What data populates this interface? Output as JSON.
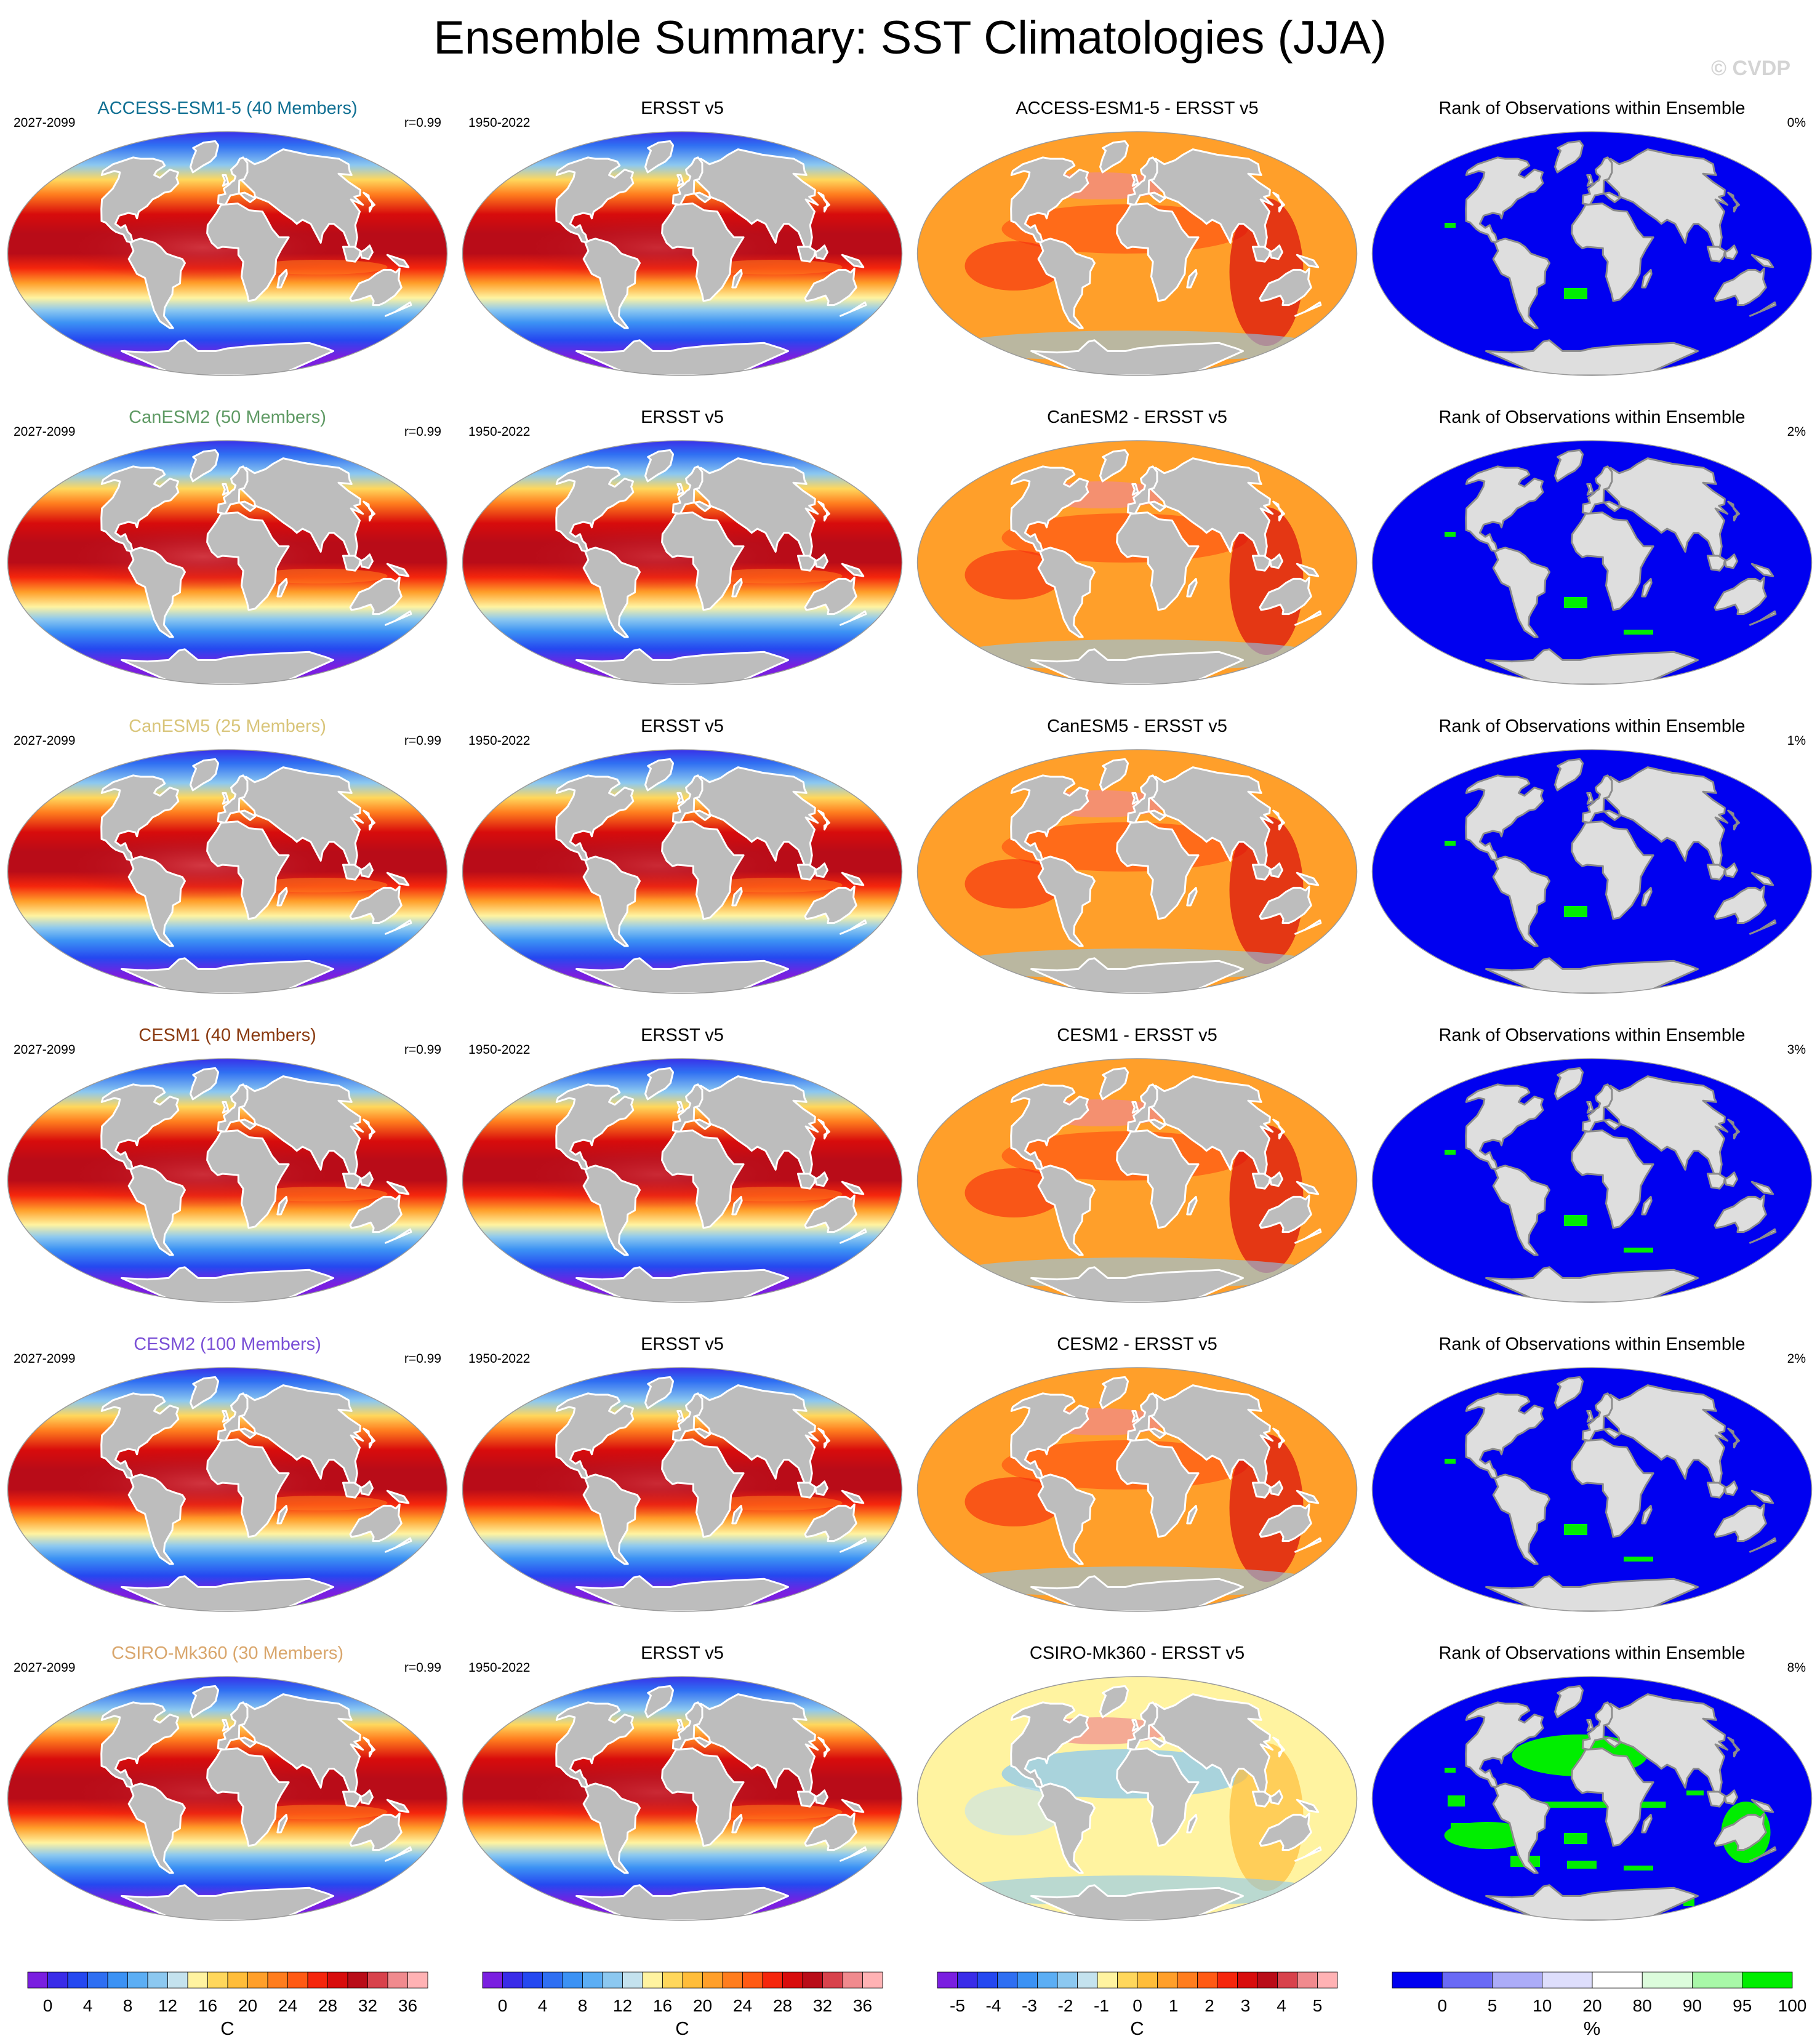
{
  "figure": {
    "title": "Ensemble Summary: SST Climatologies (JJA)",
    "watermark": "© CVDP"
  },
  "rows": [
    {
      "model": "ACCESS-ESM1-5 (40 Members)",
      "model_short": "ACCESS-ESM1-5",
      "model_color": "#0f6f92",
      "model_period": "2027-2099",
      "pattern_corr": "r=0.99",
      "obs_title": "ERSST v5",
      "obs_period": "1950-2022",
      "diff_title": "ACCESS-ESM1-5 - ERSST v5",
      "rank_title": "Rank of Observations within Ensemble",
      "rank_pct": "0%",
      "warm_bias": 0.72,
      "green_frac": 0.02
    },
    {
      "model": "CanESM2 (50 Members)",
      "model_short": "CanESM2",
      "model_color": "#5f9a64",
      "model_period": "2027-2099",
      "pattern_corr": "r=0.99",
      "obs_title": "ERSST v5",
      "obs_period": "1950-2022",
      "diff_title": "CanESM2 - ERSST v5",
      "rank_title": "Rank of Observations within Ensemble",
      "rank_pct": "2%",
      "warm_bias": 0.78,
      "green_frac": 0.05
    },
    {
      "model": "CanESM5 (25 Members)",
      "model_short": "CanESM5",
      "model_color": "#d9c57a",
      "model_period": "2027-2099",
      "pattern_corr": "r=0.99",
      "obs_title": "ERSST v5",
      "obs_period": "1950-2022",
      "diff_title": "CanESM5 - ERSST v5",
      "rank_title": "Rank of Observations within Ensemble",
      "rank_pct": "1%",
      "warm_bias": 0.82,
      "green_frac": 0.03
    },
    {
      "model": "CESM1 (40 Members)",
      "model_short": "CESM1",
      "model_color": "#8a3a10",
      "model_period": "2027-2099",
      "pattern_corr": "r=0.99",
      "obs_title": "ERSST v5",
      "obs_period": "1950-2022",
      "diff_title": "CESM1 - ERSST v5",
      "rank_title": "Rank of Observations within Ensemble",
      "rank_pct": "3%",
      "warm_bias": 0.62,
      "green_frac": 0.05
    },
    {
      "model": "CESM2 (100 Members)",
      "model_short": "CESM2",
      "model_color": "#7a4fd6",
      "model_period": "2027-2099",
      "pattern_corr": "r=0.99",
      "obs_title": "ERSST v5",
      "obs_period": "1950-2022",
      "diff_title": "CESM2 - ERSST v5",
      "rank_title": "Rank of Observations within Ensemble",
      "rank_pct": "2%",
      "warm_bias": 0.75,
      "green_frac": 0.04
    },
    {
      "model": "CSIRO-Mk360 (30 Members)",
      "model_short": "CSIRO-Mk360",
      "model_color": "#d9a66c",
      "model_period": "2027-2099",
      "pattern_corr": "r=0.99",
      "obs_title": "ERSST v5",
      "obs_period": "1950-2022",
      "diff_title": "CSIRO-Mk360 - ERSST v5",
      "rank_title": "Rank of Observations within Ensemble",
      "rank_pct": "8%",
      "warm_bias": 0.45,
      "green_frac": 0.25
    }
  ],
  "colorbars": [
    {
      "unit": "C",
      "labels": [
        "0",
        "4",
        "8",
        "12",
        "16",
        "20",
        "24",
        "28",
        "32",
        "36"
      ],
      "colors": [
        "#7a1fe0",
        "#3a2ce8",
        "#2548f0",
        "#2f6ff2",
        "#3c92f4",
        "#5caef4",
        "#8cc8f0",
        "#c4e2ee",
        "#fff3a0",
        "#ffd75c",
        "#ffbd3a",
        "#ff9f2a",
        "#ff7d1e",
        "#ff5a14",
        "#f5260c",
        "#d80c0c",
        "#b90c18",
        "#d8424c",
        "#f08a8e",
        "#ffb2b4"
      ]
    },
    {
      "unit": "C",
      "labels": [
        "0",
        "4",
        "8",
        "12",
        "16",
        "20",
        "24",
        "28",
        "32",
        "36"
      ],
      "colors": [
        "#7a1fe0",
        "#3a2ce8",
        "#2548f0",
        "#2f6ff2",
        "#3c92f4",
        "#5caef4",
        "#8cc8f0",
        "#c4e2ee",
        "#fff3a0",
        "#ffd75c",
        "#ffbd3a",
        "#ff9f2a",
        "#ff7d1e",
        "#ff5a14",
        "#f5260c",
        "#d80c0c",
        "#b90c18",
        "#d8424c",
        "#f08a8e",
        "#ffb2b4"
      ]
    },
    {
      "unit": "C",
      "labels": [
        "-5",
        "-4",
        "-3",
        "-2",
        "-1",
        "0",
        "1",
        "2",
        "3",
        "4",
        "5"
      ],
      "colors": [
        "#7a1fe0",
        "#3a2ce8",
        "#2548f0",
        "#2f6ff2",
        "#3c92f4",
        "#5caef4",
        "#8cc8f0",
        "#c4e2ee",
        "#fff3a0",
        "#ffd75c",
        "#ffbd3a",
        "#ff9f2a",
        "#ff7d1e",
        "#ff5a14",
        "#f5260c",
        "#d80c0c",
        "#b90c18",
        "#d8424c",
        "#f08a8e",
        "#ffb2b4"
      ]
    },
    {
      "unit": "%",
      "labels": [
        "0",
        "5",
        "10",
        "20",
        "80",
        "90",
        "95",
        "100"
      ],
      "colors": [
        "#0000f0",
        "#6a6af5",
        "#acacf8",
        "#dedefc",
        "#ffffff",
        "#dcfcdc",
        "#a8f8a8",
        "#00ee00"
      ]
    }
  ],
  "colors": {
    "land": "#bdbdbd",
    "coast": "#ffffff",
    "rank_land": "#dedede",
    "rank_coast": "#8c8c8c",
    "rank_blue": "#0000f0",
    "rank_green": "#00ee00"
  }
}
